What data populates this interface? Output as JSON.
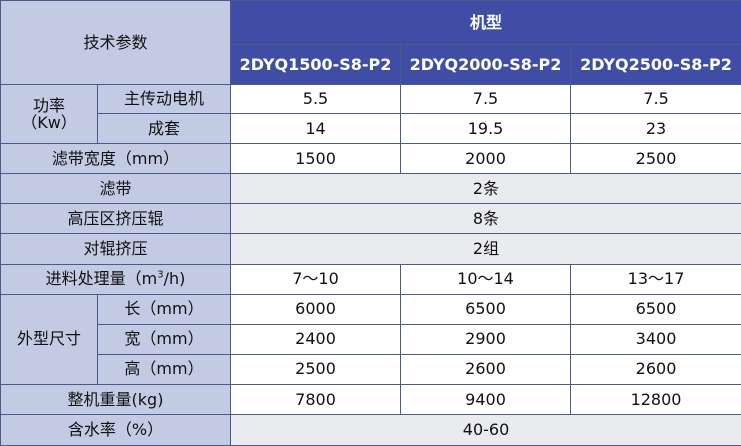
{
  "header": {
    "param_label": "技术参数",
    "model_label": "机型",
    "models": [
      "2DYQ1500-S8-P2",
      "2DYQ2000-S8-P2",
      "2DYQ2500-S8-P2"
    ]
  },
  "rows": {
    "power": {
      "label_line1": "功率",
      "label_line2": "（Kw）",
      "main_motor": {
        "label": "主传动电机",
        "values": [
          "5.5",
          "7.5",
          "7.5"
        ]
      },
      "set": {
        "label": "成套",
        "values": [
          "14",
          "19.5",
          "23"
        ]
      }
    },
    "belt_width": {
      "label": "滤带宽度（mm）",
      "values": [
        "1500",
        "2000",
        "2500"
      ]
    },
    "belt": {
      "label": "滤带",
      "value": "2条"
    },
    "high_pressure": {
      "label": "高压区挤压辊",
      "value": "8条"
    },
    "pair_rollers": {
      "label": "对辊挤压",
      "value": "2组"
    },
    "throughput": {
      "label_prefix": "进料处理量（m",
      "label_sup": "3",
      "label_suffix": "/h)",
      "values": [
        "7～10",
        "10～14",
        "13～17"
      ]
    },
    "dimensions": {
      "label": "外型尺寸",
      "length": {
        "label": "长（mm）",
        "values": [
          "6000",
          "6500",
          "6500"
        ]
      },
      "width": {
        "label": "宽（mm）",
        "values": [
          "2400",
          "2900",
          "3400"
        ]
      },
      "height": {
        "label": "高（mm）",
        "values": [
          "2500",
          "2600",
          "2600"
        ]
      }
    },
    "weight": {
      "label": "整机重量(kg)",
      "values": [
        "7800",
        "9400",
        "12800"
      ]
    },
    "water": {
      "label": "含水率（%）",
      "value": "40-60"
    }
  }
}
